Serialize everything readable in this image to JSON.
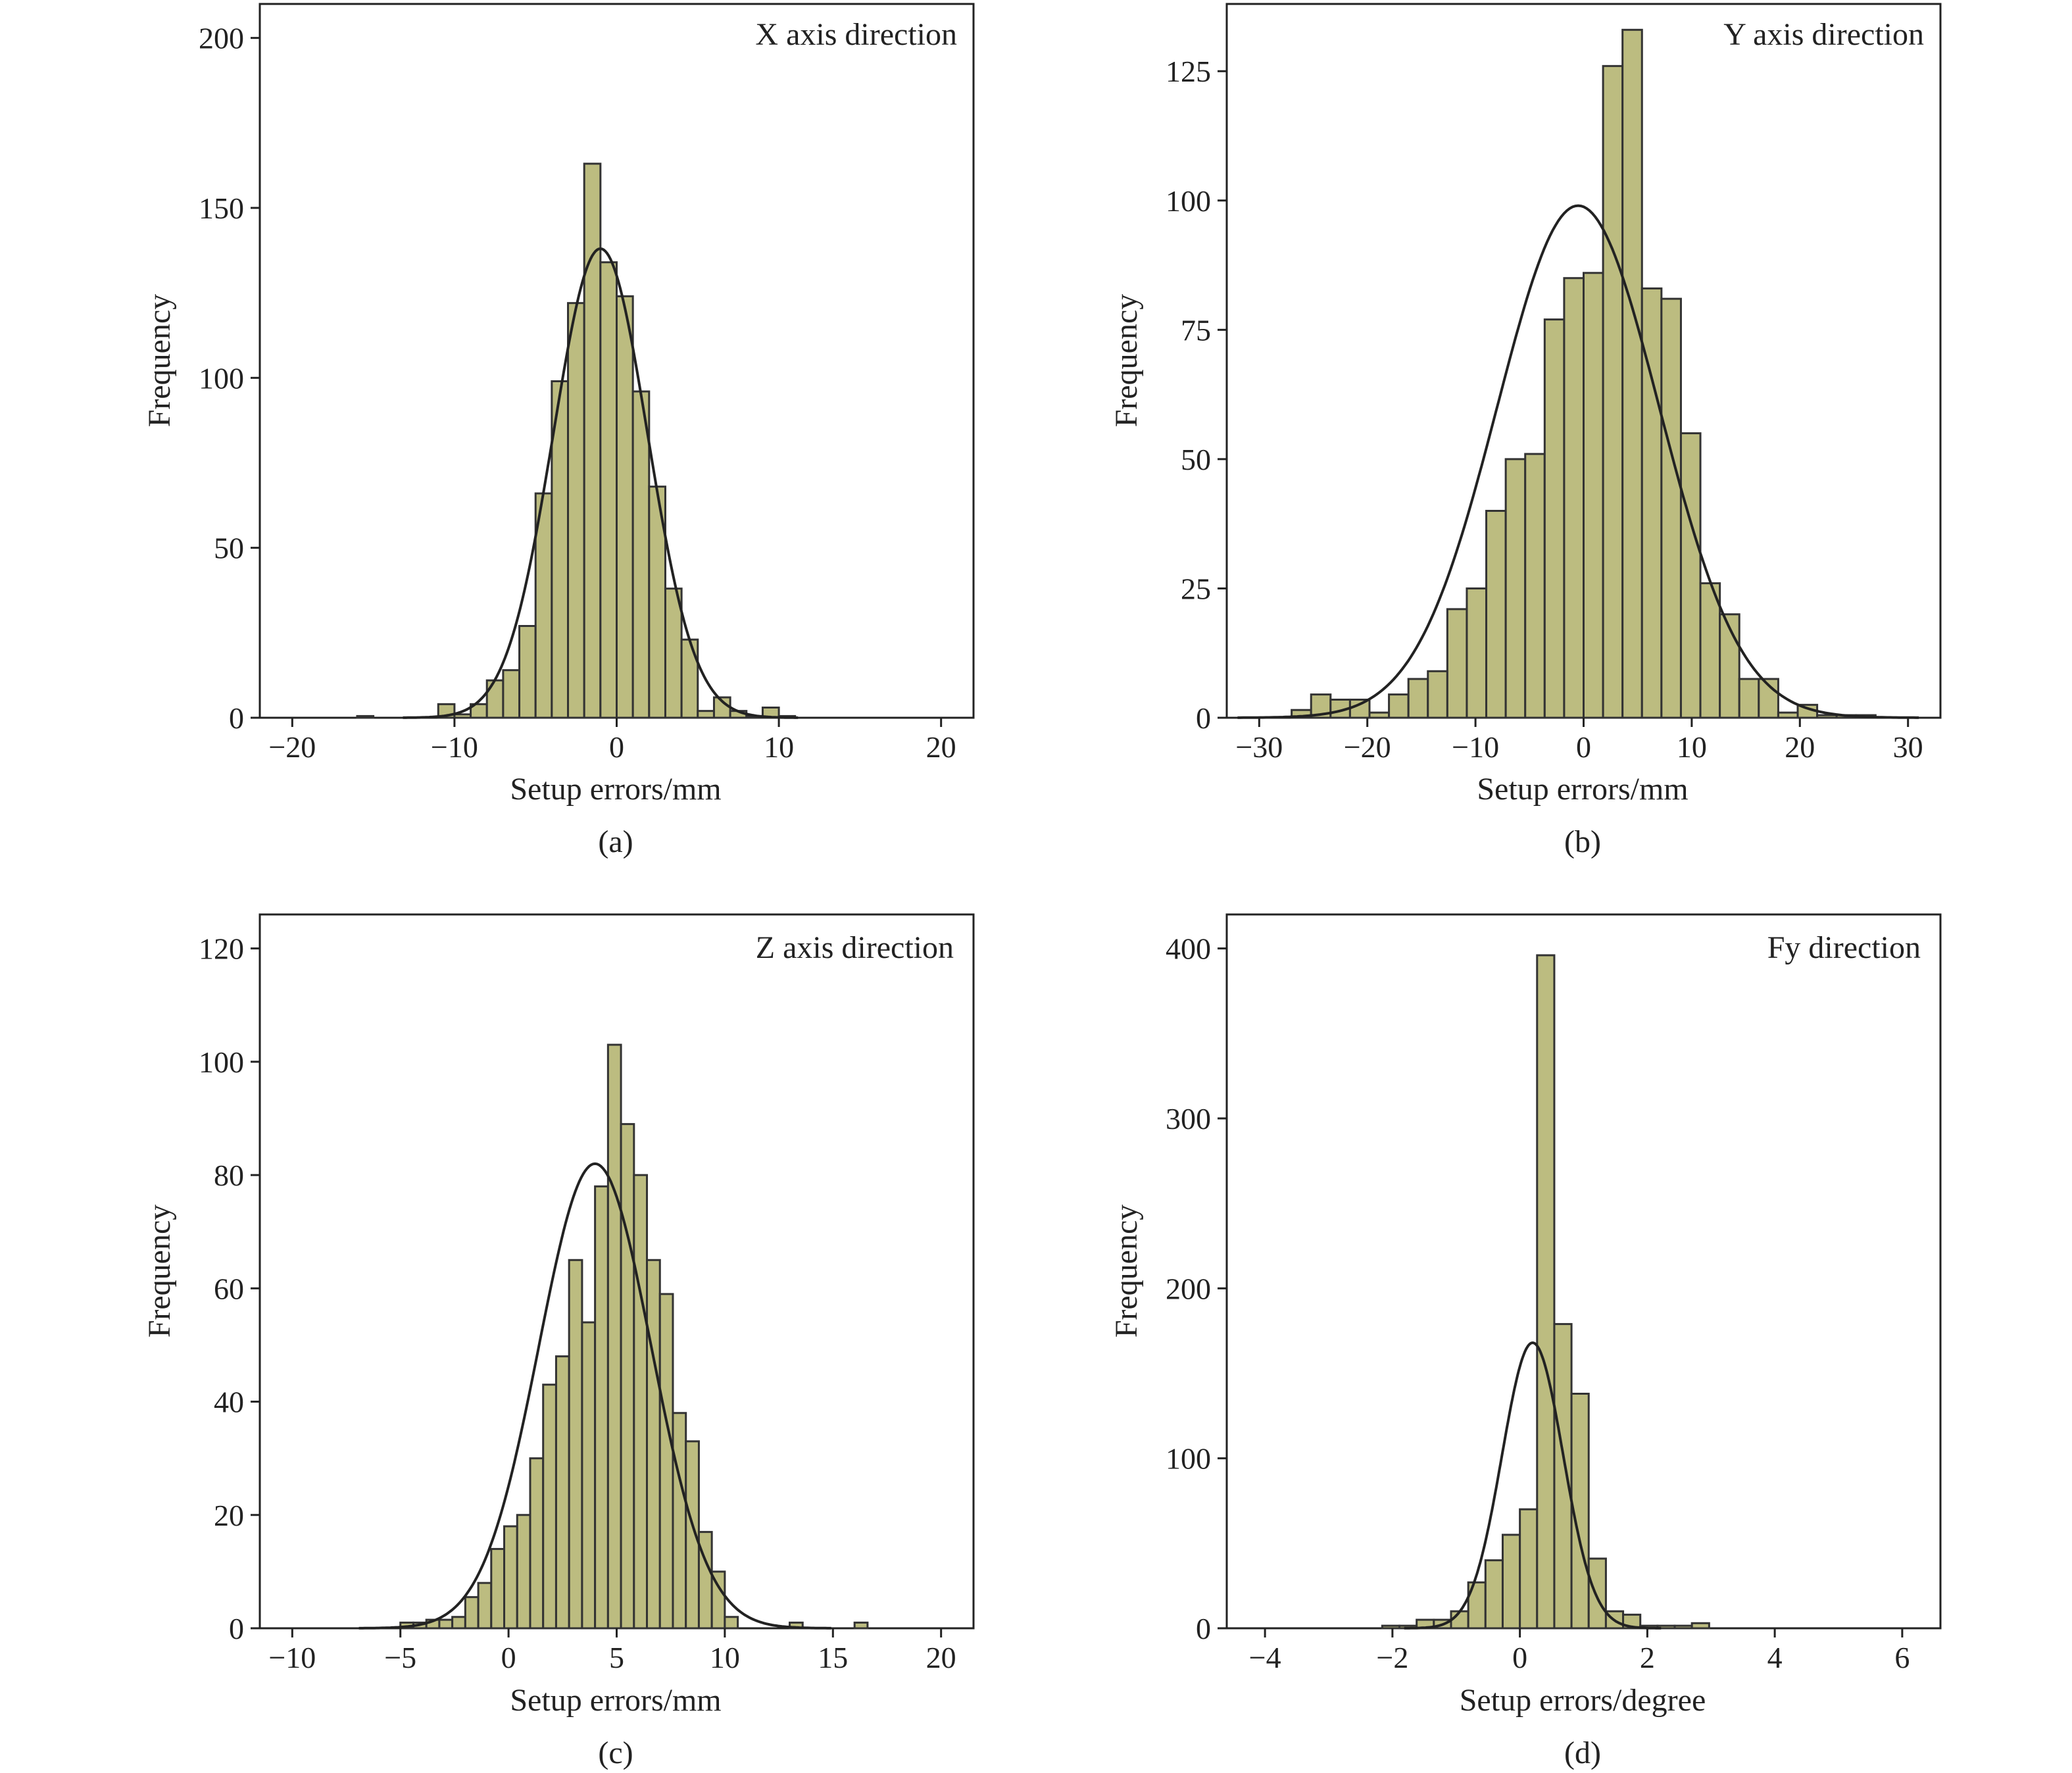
{
  "figure": {
    "bar_fill": "#bcbc80",
    "bar_stroke": "#333333",
    "curve_color": "#222222",
    "axis_color": "#222222"
  },
  "chart_data": [
    {
      "type": "bar",
      "subtype": "histogram",
      "title": "X axis direction",
      "xlabel": "Setup errors/mm",
      "ylabel": "Frequency",
      "caption": "(a)",
      "xlim": [
        -22,
        22
      ],
      "ylim": [
        0,
        210
      ],
      "xticks": [
        -20,
        -10,
        0,
        10,
        20
      ],
      "xtick_labels": [
        "−20",
        "−10",
        "0",
        "10",
        "20"
      ],
      "yticks": [
        0,
        50,
        100,
        150,
        200
      ],
      "ytick_labels": [
        "0",
        "50",
        "100",
        "150",
        "200"
      ],
      "bin_width": 1,
      "bin_starts": [
        -16,
        -11,
        -10,
        -9,
        -8,
        -7,
        -6,
        -5,
        -4,
        -3,
        -2,
        -1,
        0,
        1,
        2,
        3,
        4,
        5,
        6,
        7,
        8,
        9,
        10
      ],
      "values": [
        0.5,
        4,
        1,
        4,
        11,
        14,
        27,
        66,
        99,
        122,
        163,
        134,
        124,
        96,
        68,
        38,
        23,
        2,
        6,
        2,
        0.5,
        3,
        0.5
      ],
      "normal_fit": {
        "mean": -1,
        "sd": 2.9,
        "peak": 138
      }
    },
    {
      "type": "bar",
      "subtype": "histogram",
      "title": "Y axis direction",
      "xlabel": "Setup errors/mm",
      "ylabel": "Frequency",
      "caption": "(b)",
      "xlim": [
        -33,
        33
      ],
      "ylim": [
        0,
        138
      ],
      "xticks": [
        -30,
        -20,
        -10,
        0,
        10,
        20,
        30
      ],
      "xtick_labels": [
        "−30",
        "−20",
        "−10",
        "0",
        "10",
        "20",
        "30"
      ],
      "yticks": [
        0,
        25,
        50,
        75,
        100,
        125
      ],
      "ytick_labels": [
        "0",
        "25",
        "50",
        "75",
        "100",
        "125"
      ],
      "bin_width": 1.8,
      "bin_starts": [
        -27.0,
        -25.2,
        -23.4,
        -21.6,
        -19.8,
        -18.0,
        -16.2,
        -14.4,
        -12.6,
        -10.8,
        -9.0,
        -7.2,
        -5.4,
        -3.6,
        -1.8,
        0.0,
        1.8,
        3.6,
        5.4,
        7.2,
        9.0,
        10.8,
        12.6,
        14.4,
        16.2,
        18.0,
        19.8,
        21.6,
        23.4,
        25.2
      ],
      "values": [
        1.5,
        4.5,
        3.5,
        3.5,
        1,
        4.5,
        7.5,
        9,
        21,
        25,
        40,
        50,
        51,
        77,
        85,
        86,
        126,
        133,
        83,
        81,
        55,
        26,
        20,
        7.5,
        7.5,
        1,
        2.5,
        0.5,
        0.5,
        0.5
      ],
      "normal_fit": {
        "mean": -0.5,
        "sd": 7.5,
        "peak": 99
      }
    },
    {
      "type": "bar",
      "subtype": "histogram",
      "title": "Z axis direction",
      "xlabel": "Setup errors/mm",
      "ylabel": "Frequency",
      "caption": "(c)",
      "xlim": [
        -11.5,
        21.5
      ],
      "ylim": [
        0,
        126
      ],
      "xticks": [
        -10,
        -5,
        0,
        5,
        10,
        15,
        20
      ],
      "xtick_labels": [
        "−10",
        "−5",
        "0",
        "5",
        "10",
        "15",
        "20"
      ],
      "yticks": [
        0,
        20,
        40,
        60,
        80,
        100,
        120
      ],
      "ytick_labels": [
        "0",
        "20",
        "40",
        "60",
        "80",
        "100",
        "120"
      ],
      "bin_width": 0.6,
      "bin_starts": [
        -5.0,
        -4.4,
        -3.8,
        -3.2,
        -2.6,
        -2.0,
        -1.4,
        -0.8,
        -0.2,
        0.4,
        1.0,
        1.6,
        2.2,
        2.8,
        3.4,
        4.0,
        4.6,
        5.2,
        5.8,
        6.4,
        7.0,
        7.6,
        8.2,
        8.8,
        9.4,
        10.0,
        13.0,
        16.0
      ],
      "values": [
        1,
        1,
        1.5,
        1.5,
        2,
        5.5,
        8,
        14,
        18,
        20,
        30,
        43,
        48,
        65,
        54,
        78,
        103,
        89,
        80,
        65,
        59,
        38,
        33,
        17,
        10,
        2,
        1,
        1
      ],
      "normal_fit": {
        "mean": 4,
        "sd": 2.6,
        "peak": 82
      }
    },
    {
      "type": "bar",
      "subtype": "histogram",
      "title": "Fy direction",
      "xlabel": "Setup errors/degree",
      "ylabel": "Frequency",
      "caption": "(d)",
      "xlim": [
        -4.6,
        6.6
      ],
      "ylim": [
        0,
        420
      ],
      "xticks": [
        -4,
        -2,
        0,
        2,
        4,
        6
      ],
      "xtick_labels": [
        "−4",
        "−2",
        "0",
        "2",
        "4",
        "6"
      ],
      "yticks": [
        0,
        100,
        200,
        300,
        400
      ],
      "ytick_labels": [
        "0",
        "100",
        "200",
        "300",
        "400"
      ],
      "bin_width": 0.27,
      "bin_starts": [
        -2.16,
        -1.89,
        -1.62,
        -1.35,
        -1.08,
        -0.81,
        -0.54,
        -0.27,
        0.0,
        0.27,
        0.54,
        0.81,
        1.08,
        1.35,
        1.62,
        1.89,
        2.16,
        2.43,
        2.7
      ],
      "values": [
        1.5,
        1.5,
        5,
        5,
        10,
        27,
        40,
        55,
        70,
        396,
        179,
        138,
        41,
        10,
        8,
        1.5,
        1.5,
        1.5,
        3
      ],
      "normal_fit": {
        "mean": 0.2,
        "sd": 0.48,
        "peak": 168
      }
    }
  ]
}
